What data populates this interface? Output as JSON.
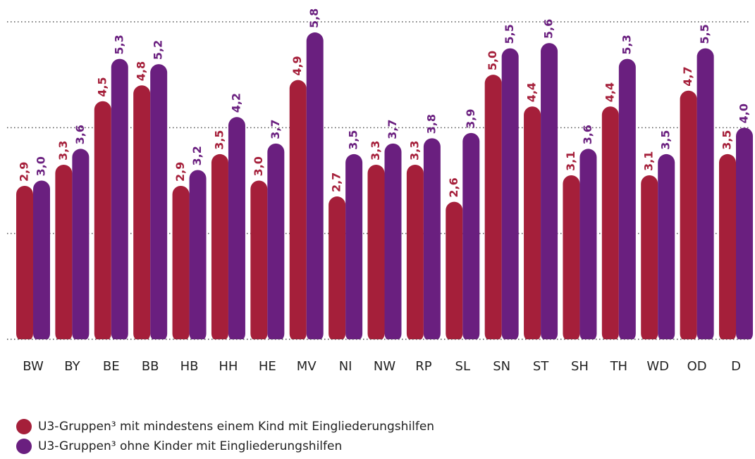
{
  "chart_data": {
    "type": "bar",
    "categories": [
      "BW",
      "BY",
      "BE",
      "BB",
      "HB",
      "HH",
      "HE",
      "MV",
      "NI",
      "NW",
      "RP",
      "SL",
      "SN",
      "ST",
      "SH",
      "TH",
      "WD",
      "OD",
      "D"
    ],
    "series": [
      {
        "name": "U3-Gruppen³ mit mindestens einem Kind mit Eingliederungshilfen",
        "color": "#a51f3a",
        "values": [
          2.9,
          3.3,
          4.5,
          4.8,
          2.9,
          3.5,
          3.0,
          4.9,
          2.7,
          3.3,
          3.3,
          2.6,
          5.0,
          4.4,
          3.1,
          4.4,
          3.1,
          4.7,
          3.5
        ],
        "value_labels": [
          "2,9",
          "3,3",
          "4,5",
          "4,8",
          "2,9",
          "3,5",
          "3,0",
          "4,9",
          "2,7",
          "3,3",
          "3,3",
          "2,6",
          "5,0",
          "4,4",
          "3,1",
          "4,4",
          "3,1",
          "4,7",
          "3,5"
        ]
      },
      {
        "name": "U3-Gruppen³ ohne Kinder mit Eingliederungshilfen",
        "color": "#6a1f7f",
        "values": [
          3.0,
          3.6,
          5.3,
          5.2,
          3.2,
          4.2,
          3.7,
          5.8,
          3.5,
          3.7,
          3.8,
          3.9,
          5.5,
          5.6,
          3.6,
          5.3,
          3.5,
          5.5,
          4.0
        ],
        "value_labels": [
          "3,0",
          "3,6",
          "5,3",
          "5,2",
          "3,2",
          "4,2",
          "3,7",
          "5,8",
          "3,5",
          "3,7",
          "3,8",
          "3,9",
          "5,5",
          "5,6",
          "3,6",
          "5,3",
          "3,5",
          "5,5",
          "4,0"
        ]
      }
    ],
    "ylim": [
      0,
      6
    ],
    "yticks": [
      0,
      2,
      4,
      6
    ],
    "grid": true
  }
}
